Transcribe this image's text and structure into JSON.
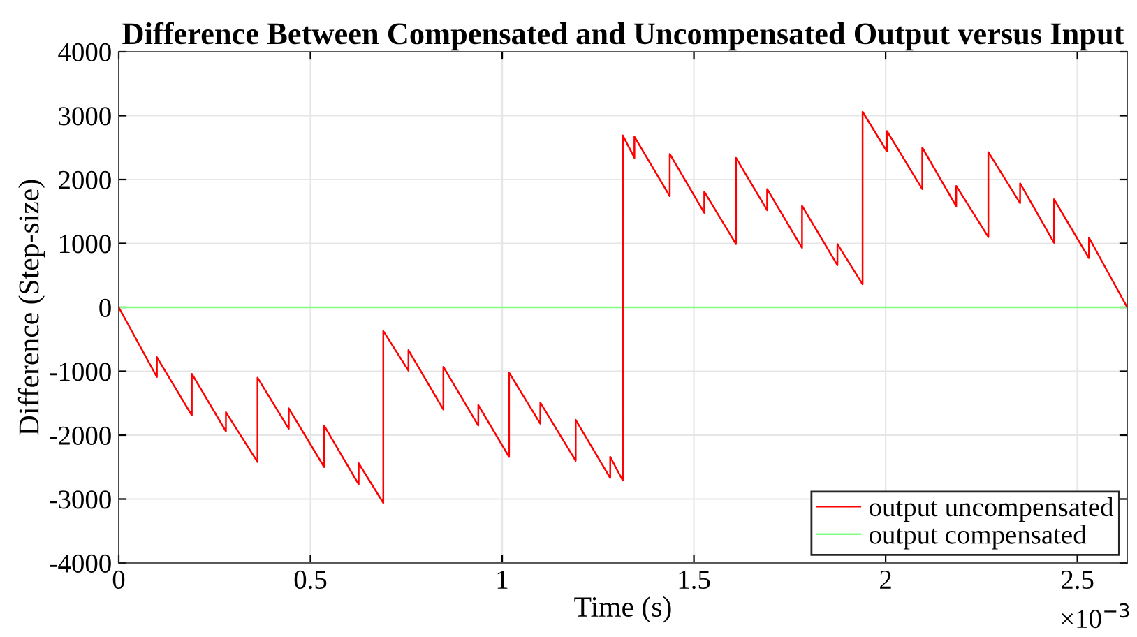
{
  "chart_data": {
    "type": "line",
    "title": "Difference Between Compensated and Uncompensated Output versus Input",
    "xlabel": "Time (s)",
    "ylabel": "Difference (Step-size)",
    "annotations": [
      "×10$^{−3}$"
    ],
    "series": [
      {
        "name": "output uncompensated",
        "color": "#ff0000",
        "x": [
          0,
          0.0995,
          0.0995,
          0.1906,
          0.1906,
          0.2795,
          0.2795,
          0.3619,
          0.3619,
          0.4434,
          0.4434,
          0.5357,
          0.5357,
          0.6257,
          0.6257,
          0.6899,
          0.6899,
          0.7555,
          0.7555,
          0.8466,
          0.8466,
          0.9377,
          0.9377,
          1.0179,
          1.0179,
          1.0994,
          1.0994,
          1.1917,
          1.1917,
          1.2817,
          1.2817,
          1.3145,
          1.3145,
          1.3448,
          1.3448,
          1.437,
          1.437,
          1.527,
          1.527,
          1.6097,
          1.6097,
          1.691,
          1.691,
          1.782,
          1.782,
          1.8743,
          1.8743,
          1.9399,
          1.9399,
          2.0033,
          2.0033,
          2.0955,
          2.0955,
          2.1841,
          2.1841,
          2.2678,
          2.2678,
          2.3506,
          2.3506,
          2.4392,
          2.4392,
          2.5303,
          2.5303,
          2.63
        ],
        "values": [
          0,
          -1090,
          -780,
          -1690,
          -1040,
          -1940,
          -1640,
          -2420,
          -1100,
          -1900,
          -1580,
          -2500,
          -1850,
          -2770,
          -2440,
          -3060,
          -370,
          -990,
          -670,
          -1600,
          -930,
          -1850,
          -1530,
          -2340,
          -1020,
          -1820,
          -1490,
          -2400,
          -1760,
          -2670,
          -2340,
          -2710,
          2690,
          2340,
          2670,
          1740,
          2400,
          1480,
          1810,
          990,
          2340,
          1520,
          1850,
          930,
          1590,
          660,
          990,
          360,
          3060,
          2440,
          2760,
          1850,
          2500,
          1580,
          1900,
          1100,
          2430,
          1630,
          1940,
          1010,
          1690,
          770,
          1090,
          0
        ]
      },
      {
        "name": "output compensated",
        "color": "#80ff80",
        "x": [
          0,
          2.63
        ],
        "values": [
          0,
          0
        ]
      }
    ],
    "xlim": [
      0,
      2.63
    ],
    "ylim": [
      -4000,
      4000
    ],
    "xticks": [
      0,
      0.5,
      1,
      1.5,
      2,
      2.5
    ],
    "yticks": [
      -4000,
      -3000,
      -2000,
      -1000,
      0,
      1000,
      2000,
      3000,
      4000
    ],
    "grid": true,
    "legend": "bottom right",
    "marker": "none",
    "line_style": "solid"
  }
}
